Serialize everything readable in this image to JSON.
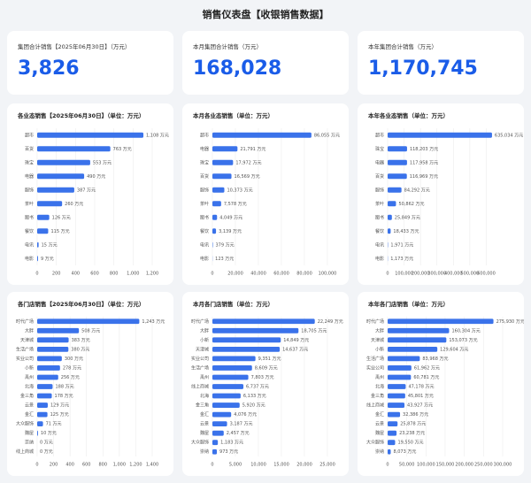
{
  "title": "销售仪表盘【收银销售数据】",
  "kpis": [
    {
      "label": "集团合计销售【2025年06月30日】（万元）",
      "value": "3,826"
    },
    {
      "label": "本月集团合计销售（万元）",
      "value": "168,028"
    },
    {
      "label": "本年集团合计销售（万元）",
      "value": "1,170,745"
    }
  ],
  "chart_data": [
    {
      "type": "hbar",
      "title": "各业态销售【2025年06月30日】（单位：万元）",
      "color": "#3a72ea",
      "grid": true,
      "categories": [
        "超市",
        "百货",
        "珠宝",
        "电器",
        "服饰",
        "茶叶",
        "图书",
        "餐饮",
        "电讯",
        "电影"
      ],
      "values": [
        1108,
        763,
        553,
        490,
        387,
        260,
        126,
        115,
        15,
        9
      ],
      "value_labels": [
        "1,108 万元",
        "763 万元",
        "553 万元",
        "490 万元",
        "387 万元",
        "260 万元",
        "126 万元",
        "115 万元",
        "15 万元",
        "9 万元"
      ],
      "xlim": [
        0,
        1200
      ],
      "xticks": [
        0,
        200,
        400,
        600,
        800,
        {
          "value": 1000,
          "label": "1,000"
        },
        {
          "value": 1200,
          "label": "1,200"
        }
      ]
    },
    {
      "type": "hbar",
      "title": "本月各业态销售（单位：万元）",
      "color": "#3a72ea",
      "grid": true,
      "categories": [
        "超市",
        "电器",
        "珠宝",
        "百货",
        "服饰",
        "茶叶",
        "图书",
        "餐饮",
        "电讯",
        "电影"
      ],
      "values": [
        86055,
        21791,
        17972,
        16569,
        10373,
        7578,
        4049,
        3139,
        379,
        123
      ],
      "value_labels": [
        "86,055 万元",
        "21,791 万元",
        "17,972 万元",
        "16,569 万元",
        "10,373 万元",
        "7,578 万元",
        "4,049 万元",
        "3,139 万元",
        "379 万元",
        "123 万元"
      ],
      "xlim": [
        0,
        100000
      ],
      "xticks": [
        0,
        {
          "value": 20000,
          "label": "20,000"
        },
        {
          "value": 40000,
          "label": "40,000"
        },
        {
          "value": 60000,
          "label": "60,000"
        },
        {
          "value": 80000,
          "label": "80,000"
        },
        {
          "value": 100000,
          "label": "100,000"
        }
      ]
    },
    {
      "type": "hbar",
      "title": "本年各业态销售（单位：万元）",
      "color": "#3a72ea",
      "grid": true,
      "categories": [
        "超市",
        "珠宝",
        "电器",
        "百货",
        "服饰",
        "茶叶",
        "图书",
        "餐饮",
        "电讯",
        "电影"
      ],
      "values": [
        635034,
        118203,
        117958,
        116969,
        84292,
        50862,
        25849,
        18433,
        1971,
        1173
      ],
      "value_labels": [
        "635,034 万元",
        "118,203 万元",
        "117,958 万元",
        "116,969 万元",
        "84,292 万元",
        "50,862 万元",
        "25,849 万元",
        "18,433 万元",
        "1,971 万元",
        "1,173 万元"
      ],
      "xlim": [
        0,
        700000
      ],
      "xticks": [
        0,
        {
          "value": 100000,
          "label": "100,000"
        },
        {
          "value": 200000,
          "label": "200,000"
        },
        {
          "value": 300000,
          "label": "300,000"
        },
        {
          "value": 400000,
          "label": "400,000"
        },
        {
          "value": 500000,
          "label": "500,000"
        },
        {
          "value": 600000,
          "label": "600,000"
        }
      ]
    },
    {
      "type": "hbar",
      "title": "各门店销售【2025年06月30日】（单位：万元）",
      "color": "#3a72ea",
      "grid": true,
      "categories": [
        "时代广场",
        "大胖",
        "天津城",
        "生活广场",
        "实业公司",
        "小新",
        "禹州",
        "北海",
        "金三角",
        "云景",
        "金汇",
        "大众服饰",
        "魏屋",
        "崇纳",
        "线上商城"
      ],
      "values": [
        1243,
        508,
        383,
        380,
        300,
        278,
        256,
        188,
        178,
        129,
        125,
        71,
        10,
        0,
        0
      ],
      "value_labels": [
        "1,243 万元",
        "508 万元",
        "383 万元",
        "380 万元",
        "300 万元",
        "278 万元",
        "256 万元",
        "188 万元",
        "178 万元",
        "129 万元",
        "125 万元",
        "71 万元",
        "10 万元",
        "0 万元",
        "0 万元"
      ],
      "xlim": [
        0,
        1400
      ],
      "xticks": [
        0,
        200,
        400,
        600,
        800,
        {
          "value": 1000,
          "label": "1,000"
        },
        {
          "value": 1200,
          "label": "1,200"
        },
        {
          "value": 1400,
          "label": "1,400"
        }
      ]
    },
    {
      "type": "hbar",
      "title": "本月各门店销售（单位：万元）",
      "color": "#3a72ea",
      "grid": true,
      "categories": [
        "时代广场",
        "大胖",
        "小新",
        "天津城",
        "实业公司",
        "生活广场",
        "禹州",
        "线上商城",
        "北海",
        "金三角",
        "金汇",
        "云景",
        "魏屋",
        "大众服饰",
        "崇纳"
      ],
      "values": [
        22249,
        18705,
        14849,
        14637,
        9351,
        8609,
        7803,
        6737,
        6133,
        5920,
        4076,
        3187,
        2457,
        1183,
        973
      ],
      "value_labels": [
        "22,249 万元",
        "18,705 万元",
        "14,849 万元",
        "14,637 万元",
        "9,351 万元",
        "8,609 万元",
        "7,803 万元",
        "6,737 万元",
        "6,133 万元",
        "5,920 万元",
        "4,076 万元",
        "3,187 万元",
        "2,457 万元",
        "1,183 万元",
        "973 万元"
      ],
      "xlim": [
        0,
        25000
      ],
      "xticks": [
        0,
        {
          "value": 5000,
          "label": "5,000"
        },
        {
          "value": 10000,
          "label": "10,000"
        },
        {
          "value": 15000,
          "label": "15,000"
        },
        {
          "value": 20000,
          "label": "20,000"
        },
        {
          "value": 25000,
          "label": "25,000"
        }
      ]
    },
    {
      "type": "hbar",
      "title": "本年各门店销售（单位：万元）",
      "color": "#3a72ea",
      "grid": true,
      "categories": [
        "时代广场",
        "大胖",
        "天津城",
        "小新",
        "生活广场",
        "实业公司",
        "禹州",
        "北海",
        "金三角",
        "线上商城",
        "金汇",
        "云景",
        "魏屋",
        "大众服饰",
        "崇纳"
      ],
      "values": [
        275930,
        160304,
        153073,
        129604,
        83968,
        61962,
        60781,
        47178,
        45801,
        43927,
        32386,
        25878,
        23238,
        19550,
        8073
      ],
      "value_labels": [
        "275,930 万元",
        "160,304 万元",
        "153,073 万元",
        "129,604 万元",
        "83,968 万元",
        "61,962 万元",
        "60,781 万元",
        "47,178 万元",
        "45,801 万元",
        "43,927 万元",
        "32,386 万元",
        "25,878 万元",
        "23,238 万元",
        "19,550 万元",
        "8,073 万元"
      ],
      "xlim": [
        0,
        300000
      ],
      "xticks": [
        0,
        {
          "value": 50000,
          "label": "50,000"
        },
        {
          "value": 100000,
          "label": "100,000"
        },
        {
          "value": 150000,
          "label": "150,000"
        },
        {
          "value": 200000,
          "label": "200,000"
        },
        {
          "value": 250000,
          "label": "250,000"
        },
        {
          "value": 300000,
          "label": "300,000"
        }
      ]
    }
  ]
}
